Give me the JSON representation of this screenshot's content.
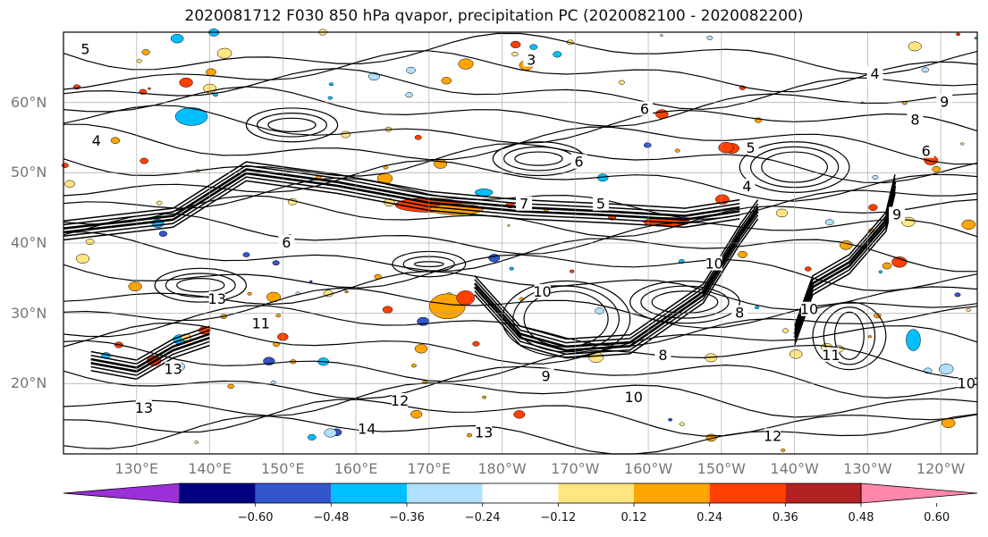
{
  "title": "2020081712 F030 850 hPa qvapor, precipitation PC (2020082100 - 2020082200)",
  "chart_data": {
    "type": "heatmap",
    "title": "2020081712 F030 850 hPa qvapor, precipitation PC (2020082100 - 2020082200)",
    "map": {
      "projection": "equirectangular",
      "lon_min": 120.0,
      "lon_max": 245.0,
      "lat_min": 10.0,
      "lat_max": 70.0
    },
    "lat_ticks": [
      {
        "value": 20,
        "label": "20°N"
      },
      {
        "value": 30,
        "label": "30°N"
      },
      {
        "value": 40,
        "label": "40°N"
      },
      {
        "value": 50,
        "label": "50°N"
      },
      {
        "value": 60,
        "label": "60°N"
      }
    ],
    "lon_ticks": [
      {
        "value": 130,
        "label": "130°E"
      },
      {
        "value": 140,
        "label": "140°E"
      },
      {
        "value": 150,
        "label": "150°E"
      },
      {
        "value": 160,
        "label": "160°E"
      },
      {
        "value": 170,
        "label": "170°E"
      },
      {
        "value": 180,
        "label": "180°W"
      },
      {
        "value": 190,
        "label": "170°W"
      },
      {
        "value": 200,
        "label": "160°W"
      },
      {
        "value": 210,
        "label": "150°W"
      },
      {
        "value": 220,
        "label": "140°W"
      },
      {
        "value": 230,
        "label": "130°W"
      },
      {
        "value": 240,
        "label": "120°W"
      }
    ],
    "grid": true,
    "colorbar": {
      "extend": "both",
      "levels": [
        -0.6,
        -0.48,
        -0.36,
        -0.24,
        -0.12,
        0.12,
        0.24,
        0.36,
        0.48,
        0.6
      ],
      "tick_labels": [
        "−0.60",
        "−0.48",
        "−0.36",
        "−0.24",
        "−0.12",
        "0.12",
        "0.24",
        "0.36",
        "0.48",
        "0.60"
      ],
      "colors": [
        "#9b30d9",
        "#000080",
        "#3355cc",
        "#00bfff",
        "#b0e0ff",
        "#ffffff",
        "#ffe680",
        "#ffa500",
        "#ff4000",
        "#b22222",
        "#ff88aa"
      ]
    },
    "contour_labels": [
      {
        "text": "5",
        "lon": 123.0,
        "lat": 67.5
      },
      {
        "text": "4",
        "lon": 124.5,
        "lat": 54.5
      },
      {
        "text": "3",
        "lon": 184.0,
        "lat": 66.0
      },
      {
        "text": "6",
        "lon": 199.5,
        "lat": 59.0
      },
      {
        "text": "5",
        "lon": 214.0,
        "lat": 53.5
      },
      {
        "text": "4",
        "lon": 213.5,
        "lat": 48.0
      },
      {
        "text": "6",
        "lon": 190.5,
        "lat": 51.5
      },
      {
        "text": "6",
        "lon": 150.5,
        "lat": 40.0
      },
      {
        "text": "7",
        "lon": 183.0,
        "lat": 45.5
      },
      {
        "text": "5",
        "lon": 193.5,
        "lat": 45.5
      },
      {
        "text": "10",
        "lon": 209.0,
        "lat": 37.0
      },
      {
        "text": "10",
        "lon": 185.5,
        "lat": 33.0
      },
      {
        "text": "13",
        "lon": 141.0,
        "lat": 32.0
      },
      {
        "text": "11",
        "lon": 147.0,
        "lat": 28.5
      },
      {
        "text": "13",
        "lon": 135.0,
        "lat": 22.0
      },
      {
        "text": "13",
        "lon": 131.0,
        "lat": 16.5
      },
      {
        "text": "12",
        "lon": 166.0,
        "lat": 17.5
      },
      {
        "text": "13",
        "lon": 177.5,
        "lat": 13.0
      },
      {
        "text": "14",
        "lon": 161.5,
        "lat": 13.5
      },
      {
        "text": "10",
        "lon": 198.0,
        "lat": 18.0
      },
      {
        "text": "8",
        "lon": 202.0,
        "lat": 24.0
      },
      {
        "text": "8",
        "lon": 212.5,
        "lat": 30.0
      },
      {
        "text": "10",
        "lon": 222.0,
        "lat": 30.5
      },
      {
        "text": "12",
        "lon": 217.0,
        "lat": 12.5
      },
      {
        "text": "9",
        "lon": 234.0,
        "lat": 44.0
      },
      {
        "text": "8",
        "lon": 236.5,
        "lat": 57.5
      },
      {
        "text": "6",
        "lon": 238.0,
        "lat": 53.0
      },
      {
        "text": "4",
        "lon": 231.0,
        "lat": 64.0
      },
      {
        "text": "9",
        "lon": 240.5,
        "lat": 60.0
      },
      {
        "text": "11",
        "lon": 225.0,
        "lat": 24.0
      },
      {
        "text": "10",
        "lon": 243.5,
        "lat": 20.0
      },
      {
        "text": "9",
        "lon": 186.0,
        "lat": 21.0
      }
    ]
  }
}
